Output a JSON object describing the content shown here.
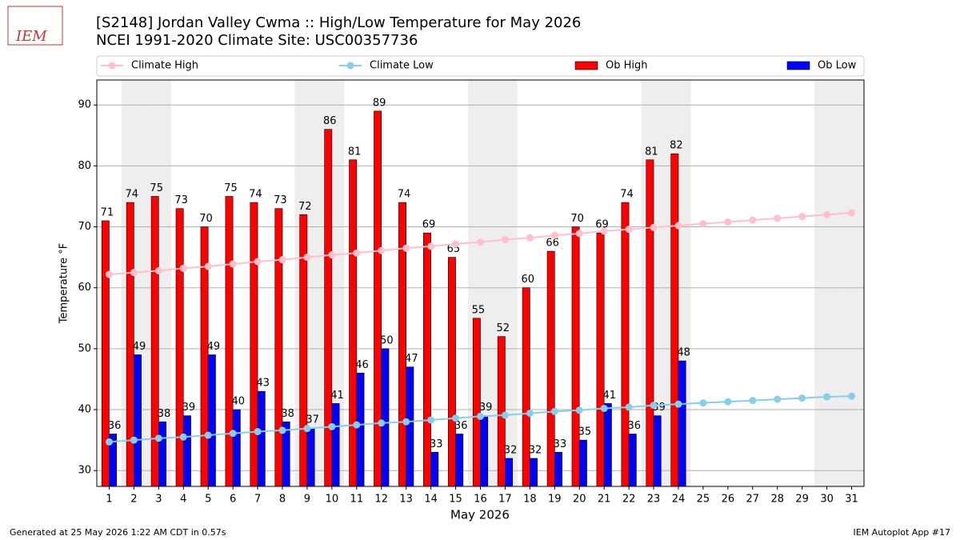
{
  "logo": "IEM",
  "chart_data": {
    "type": "bar",
    "title": "[S2148] Jordan Valley Cwma :: High/Low Temperature for May 2026",
    "subtitle": "NCEI 1991-2020 Climate Site: USC00357736",
    "x_label": "May 2026",
    "y_label": "Temperature °F",
    "x": [
      1,
      2,
      3,
      4,
      5,
      6,
      7,
      8,
      9,
      10,
      11,
      12,
      13,
      14,
      15,
      16,
      17,
      18,
      19,
      20,
      21,
      22,
      23,
      24,
      25,
      26,
      27,
      28,
      29,
      30,
      31
    ],
    "xlim": [
      0.5,
      31.5
    ],
    "xticks": [
      1,
      2,
      3,
      4,
      5,
      6,
      7,
      8,
      9,
      10,
      11,
      12,
      13,
      14,
      15,
      16,
      17,
      18,
      19,
      20,
      21,
      22,
      23,
      24,
      25,
      26,
      27,
      28,
      29,
      30,
      31
    ],
    "ylim": [
      27.4,
      94.1
    ],
    "yticks": [
      30,
      40,
      50,
      60,
      70,
      80,
      90
    ],
    "grid": true,
    "shaded_days": [
      2,
      3,
      9,
      10,
      16,
      17,
      23,
      24,
      30,
      31
    ],
    "shade_color": "#eeeeee",
    "series": [
      {
        "name": "Climate High",
        "kind": "line",
        "color": "#ffc0cb",
        "values": [
          62.2,
          62.5,
          62.8,
          63.2,
          63.5,
          63.9,
          64.3,
          64.6,
          65.0,
          65.4,
          65.7,
          66.1,
          66.5,
          66.8,
          67.2,
          67.5,
          67.9,
          68.2,
          68.6,
          68.9,
          69.3,
          69.6,
          69.9,
          70.2,
          70.5,
          70.8,
          71.1,
          71.4,
          71.7,
          72.0,
          72.3
        ]
      },
      {
        "name": "Climate Low",
        "kind": "line",
        "color": "#87ceeb",
        "values": [
          34.7,
          35.0,
          35.3,
          35.5,
          35.8,
          36.1,
          36.4,
          36.6,
          36.9,
          37.2,
          37.5,
          37.8,
          38.0,
          38.3,
          38.6,
          38.9,
          39.1,
          39.4,
          39.7,
          39.9,
          40.2,
          40.4,
          40.7,
          40.9,
          41.1,
          41.3,
          41.5,
          41.7,
          41.9,
          42.1,
          42.2
        ]
      },
      {
        "name": "Ob High",
        "kind": "bar",
        "color": "#ff0000",
        "values": [
          71,
          74,
          75,
          73,
          70,
          75,
          74,
          73,
          72,
          86,
          81,
          89,
          74,
          69,
          65,
          55,
          52,
          60,
          66,
          70,
          69,
          74,
          81,
          82,
          null,
          null,
          null,
          null,
          null,
          null,
          null
        ]
      },
      {
        "name": "Ob Low",
        "kind": "bar",
        "color": "#0000ff",
        "values": [
          36,
          49,
          38,
          39,
          49,
          40,
          43,
          38,
          37,
          41,
          46,
          50,
          47,
          33,
          36,
          39,
          32,
          32,
          33,
          35,
          41,
          36,
          39,
          48,
          null,
          null,
          null,
          null,
          null,
          null,
          null
        ]
      }
    ],
    "footer_left": "Generated at 25 May 2026 1:22 AM CDT in 0.57s",
    "footer_right": "IEM Autoplot App #17"
  }
}
